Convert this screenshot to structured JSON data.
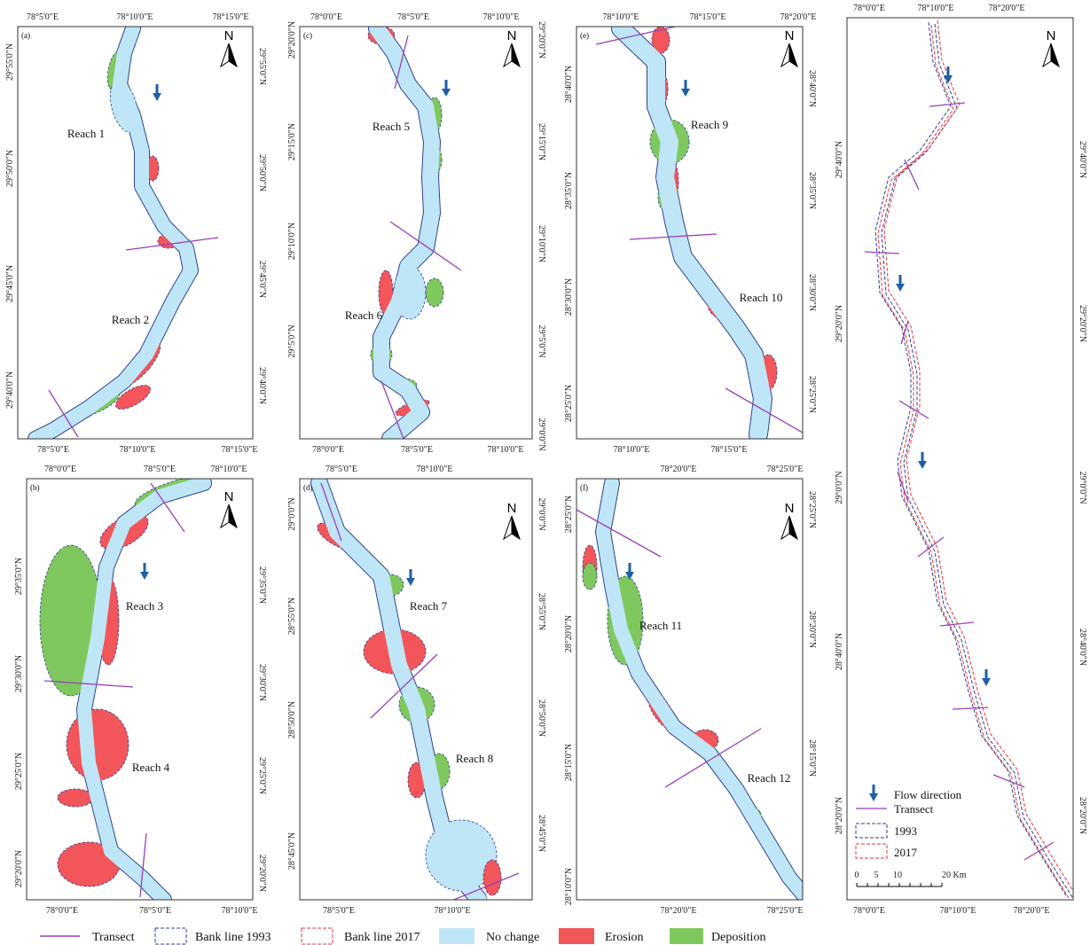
{
  "panels": [
    {
      "letter": "(a)",
      "north": "N",
      "top": [
        "78°5'0\"E",
        "78°10'0\"E",
        "78°15'0\"E"
      ],
      "bottom": [
        "78°5'0\"E",
        "78°10'0\"E",
        "78°15'0\"E"
      ],
      "left": [
        "29°55'0\"N",
        "29°50'0\"N",
        "29°45'0\"N",
        "29°40'0\"N"
      ],
      "right": [
        "29°55'0\"N",
        "29°50'0\"N",
        "29°45'0\"N",
        "29°40'0\"N"
      ],
      "reaches": [
        "Reach 1",
        "Reach 2"
      ]
    },
    {
      "letter": "(c)",
      "north": "N",
      "top": [
        "78°0'0\"E",
        "78°5'0\"E",
        "78°10'0\"E"
      ],
      "bottom": [
        "78°0'0\"E",
        "78°5'0\"E",
        "78°10'0\"E"
      ],
      "left": [
        "29°20'0\"N",
        "29°15'0\"N",
        "29°10'0\"N",
        "29°5'0\"N"
      ],
      "right": [
        "29°20'0\"N",
        "29°15'0\"N",
        "29°10'0\"N",
        "29°5'0\"N",
        "29°0'0\"N"
      ],
      "reaches": [
        "Reach 5",
        "Reach 6"
      ]
    },
    {
      "letter": "(e)",
      "north": "N",
      "top": [
        "78°10'0\"E",
        "78°15'0\"E",
        "78°20'0\"E"
      ],
      "bottom": [
        "78°10'0\"E",
        "78°15'0\"E"
      ],
      "left": [
        "28°40'0\"N",
        "28°35'0\"N",
        "28°30'0\"N",
        "28°25'0\"N"
      ],
      "right": [
        "28°40'0\"N",
        "28°35'0\"N",
        "28°30'0\"N",
        "28°25'0\"N"
      ],
      "reaches": [
        "Reach 9",
        "Reach 10"
      ]
    },
    {
      "letter": "(b)",
      "north": "N",
      "top": [
        "78°0'0\"E",
        "78°5'0\"E",
        "78°10'0\"E"
      ],
      "bottom": [
        "78°0'0\"E",
        "78°5'0\"E",
        "78°10'0\"E"
      ],
      "left": [
        "29°35'0\"N",
        "29°30'0\"N",
        "29°25'0\"N",
        "29°20'0\"N"
      ],
      "right": [
        "29°35'0\"N",
        "29°30'0\"N",
        "29°25'0\"N",
        "29°20'0\"N"
      ],
      "reaches": [
        "Reach 3",
        "Reach 4"
      ]
    },
    {
      "letter": "(d)",
      "north": "N",
      "top": [
        "78°5'0\"E",
        "78°10'0\"E"
      ],
      "bottom": [
        "78°5'0\"E",
        "78°10'0\"E"
      ],
      "left": [
        "29°0'0\"N",
        "28°55'0\"N",
        "28°50'0\"N",
        "28°45'0\"N"
      ],
      "right": [
        "29°0'0\"N",
        "28°55'0\"N",
        "28°50'0\"N",
        "28°45'0\"N"
      ],
      "reaches": [
        "Reach 7",
        "Reach 8"
      ]
    },
    {
      "letter": "(f)",
      "north": "N",
      "top": [
        "78°20'0\"E",
        "78°25'0\"E"
      ],
      "bottom": [
        "78°20'0\"E",
        "78°25'0\"E"
      ],
      "left": [
        "28°25'0\"N",
        "28°20'0\"N",
        "28°15'0\"N",
        "28°10'0\"N"
      ],
      "right": [
        "28°25'0\"N",
        "28°20'0\"N",
        "28°15'0\"N"
      ],
      "reaches": [
        "Reach 11",
        "Reach 12"
      ]
    },
    {
      "north": "N",
      "top": [
        "78°0'0\"E",
        "78°10'0\"E",
        "78°20'0\"E"
      ],
      "bottom": [
        "78°0'0\"E",
        "78°10'0\"E",
        "78°20'0\"E"
      ],
      "left": [
        "29°40'0\"N",
        "29°20'0\"N",
        "29°0'0\"N",
        "28°40'0\"N",
        "28°20'0\"N"
      ],
      "right": [
        "29°40'0\"N",
        "29°20'0\"N",
        "29°0'0\"N",
        "28°40'0\"N",
        "28°20'0\"N"
      ],
      "reaches": []
    }
  ],
  "overview_legend": {
    "flow": "Flow direction",
    "transect": "Transect",
    "bank1993": "1993",
    "bank2017": "2017",
    "scale": [
      "0",
      "5",
      "10",
      "20 Km"
    ]
  },
  "legend": [
    "Transect",
    "Bank line 1993",
    "Bank line 2017",
    "No change",
    "Erosion",
    "Deposition"
  ]
}
